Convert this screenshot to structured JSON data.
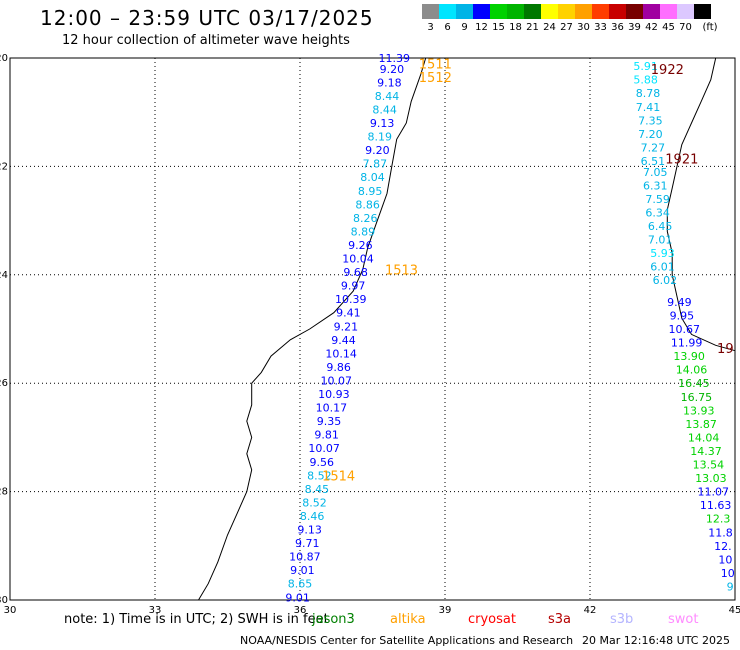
{
  "title": "12:00 – 23:59 UTC 03/17/2025",
  "subtitle": "12 hour collection of altimeter wave heights",
  "color_scale": {
    "unit_label": "(ft)",
    "bins": [
      {
        "label": "3",
        "color": "#8c8c8c"
      },
      {
        "label": "6",
        "color": "#00e5ff"
      },
      {
        "label": "9",
        "color": "#00b4e6"
      },
      {
        "label": "12",
        "color": "#0000ff"
      },
      {
        "label": "15",
        "color": "#00d200"
      },
      {
        "label": "18",
        "color": "#00b400"
      },
      {
        "label": "21",
        "color": "#007800"
      },
      {
        "label": "24",
        "color": "#ffff00"
      },
      {
        "label": "27",
        "color": "#ffd200"
      },
      {
        "label": "30",
        "color": "#ffa000"
      },
      {
        "label": "33",
        "color": "#ff3c00"
      },
      {
        "label": "36",
        "color": "#c80000"
      },
      {
        "label": "39",
        "color": "#780000"
      },
      {
        "label": "42",
        "color": "#a000a0"
      },
      {
        "label": "45",
        "color": "#ff6eff"
      },
      {
        "label": "70",
        "color": "#dcc8ff"
      },
      {
        "label": "",
        "color": "#000000"
      }
    ]
  },
  "footer": {
    "note": "note: 1) Time is in UTC; 2) SWH is in feet",
    "satellites": [
      {
        "name": "jason3",
        "color": "#008000"
      },
      {
        "name": "altika",
        "color": "#ffa000"
      },
      {
        "name": "cryosat",
        "color": "#ff0000"
      },
      {
        "name": "s3a",
        "color": "#b40000"
      },
      {
        "name": "s3b",
        "color": "#b4b4ff"
      },
      {
        "name": "swot",
        "color": "#ff8cff"
      }
    ],
    "credit": "NOAA/NESDIS Center for Satellite Applications and Research",
    "timestamp": "20 Mar 12:16:48 UTC 2025"
  },
  "chart_data": {
    "type": "scatter",
    "title": "12:00 – 23:59 UTC 03/17/2025",
    "subtitle": "12 hour collection of altimeter wave heights",
    "xlim": [
      30,
      45
    ],
    "ylim": [
      -30,
      -20
    ],
    "x_ticks": [
      "30",
      "33",
      "36",
      "39",
      "42",
      "45"
    ],
    "y_ticks": [
      "-20",
      "-22",
      "-24",
      "-26",
      "-28",
      "-30"
    ],
    "grid": true,
    "tracks": [
      {
        "id": "1511",
        "lon": 38.8,
        "lat": -20.1,
        "color": "#ffa000"
      },
      {
        "id": "1512",
        "lon": 38.8,
        "lat": -20.35,
        "color": "#ffa000"
      },
      {
        "id": "1513",
        "lon": 38.1,
        "lat": -23.9,
        "color": "#ffa000"
      },
      {
        "id": "1514",
        "lon": 36.8,
        "lat": -27.7,
        "color": "#ffa000"
      },
      {
        "id": "1922",
        "lon": 43.6,
        "lat": -20.2,
        "color": "#780000"
      },
      {
        "id": "1921",
        "lon": 43.9,
        "lat": -21.85,
        "color": "#780000"
      },
      {
        "id": "19",
        "lon": 44.8,
        "lat": -25.35,
        "color": "#780000"
      }
    ],
    "observations": [
      {
        "lat": -20.0,
        "lon": 37.95,
        "swh": "11.39"
      },
      {
        "lat": -20.2,
        "lon": 37.9,
        "swh": "9.20"
      },
      {
        "lat": -20.45,
        "lon": 37.85,
        "swh": "9.18"
      },
      {
        "lat": -20.7,
        "lon": 37.8,
        "swh": "8.44"
      },
      {
        "lat": -20.95,
        "lon": 37.75,
        "swh": "8.44"
      },
      {
        "lat": -21.2,
        "lon": 37.7,
        "swh": "9.13"
      },
      {
        "lat": -21.45,
        "lon": 37.65,
        "swh": "8.19"
      },
      {
        "lat": -21.7,
        "lon": 37.6,
        "swh": "9.20"
      },
      {
        "lat": -21.95,
        "lon": 37.55,
        "swh": "7.87"
      },
      {
        "lat": -22.2,
        "lon": 37.5,
        "swh": "8.04"
      },
      {
        "lat": -22.45,
        "lon": 37.45,
        "swh": "8.95"
      },
      {
        "lat": -22.7,
        "lon": 37.4,
        "swh": "8.86"
      },
      {
        "lat": -22.95,
        "lon": 37.35,
        "swh": "8.26"
      },
      {
        "lat": -23.2,
        "lon": 37.3,
        "swh": "8.89"
      },
      {
        "lat": -23.45,
        "lon": 37.25,
        "swh": "9.26"
      },
      {
        "lat": -23.7,
        "lon": 37.2,
        "swh": "10.04"
      },
      {
        "lat": -23.95,
        "lon": 37.15,
        "swh": "9.68"
      },
      {
        "lat": -24.2,
        "lon": 37.1,
        "swh": "9.97"
      },
      {
        "lat": -24.45,
        "lon": 37.05,
        "swh": "10.39"
      },
      {
        "lat": -24.7,
        "lon": 37.0,
        "swh": "9.41"
      },
      {
        "lat": -24.95,
        "lon": 36.95,
        "swh": "9.21"
      },
      {
        "lat": -25.2,
        "lon": 36.9,
        "swh": "9.44"
      },
      {
        "lat": -25.45,
        "lon": 36.85,
        "swh": "10.14"
      },
      {
        "lat": -25.7,
        "lon": 36.8,
        "swh": "9.86"
      },
      {
        "lat": -25.95,
        "lon": 36.75,
        "swh": "10.07"
      },
      {
        "lat": -26.2,
        "lon": 36.7,
        "swh": "10.93"
      },
      {
        "lat": -26.45,
        "lon": 36.65,
        "swh": "10.17"
      },
      {
        "lat": -26.7,
        "lon": 36.6,
        "swh": "9.35"
      },
      {
        "lat": -26.95,
        "lon": 36.55,
        "swh": "9.81"
      },
      {
        "lat": -27.2,
        "lon": 36.5,
        "swh": "10.07"
      },
      {
        "lat": -27.45,
        "lon": 36.45,
        "swh": "9.56"
      },
      {
        "lat": -27.7,
        "lon": 36.4,
        "swh": "8.52"
      },
      {
        "lat": -27.95,
        "lon": 36.35,
        "swh": "8.45"
      },
      {
        "lat": -28.2,
        "lon": 36.3,
        "swh": "8.52"
      },
      {
        "lat": -28.45,
        "lon": 36.25,
        "swh": "8.46"
      },
      {
        "lat": -28.7,
        "lon": 36.2,
        "swh": "9.13"
      },
      {
        "lat": -28.95,
        "lon": 36.15,
        "swh": "9.71"
      },
      {
        "lat": -29.2,
        "lon": 36.1,
        "swh": "10.87"
      },
      {
        "lat": -29.45,
        "lon": 36.05,
        "swh": "9.01"
      },
      {
        "lat": -29.7,
        "lon": 36.0,
        "swh": "8.65"
      },
      {
        "lat": -29.95,
        "lon": 35.95,
        "swh": "9.01"
      },
      {
        "lat": -20.15,
        "lon": 43.15,
        "swh": "5.91"
      },
      {
        "lat": -20.4,
        "lon": 43.15,
        "swh": "5.88"
      },
      {
        "lat": -20.65,
        "lon": 43.2,
        "swh": "8.78"
      },
      {
        "lat": -20.9,
        "lon": 43.2,
        "swh": "7.41"
      },
      {
        "lat": -21.15,
        "lon": 43.25,
        "swh": "7.35"
      },
      {
        "lat": -21.4,
        "lon": 43.25,
        "swh": "7.20"
      },
      {
        "lat": -21.65,
        "lon": 43.3,
        "swh": "7.27"
      },
      {
        "lat": -21.9,
        "lon": 43.3,
        "swh": "6.51"
      },
      {
        "lat": -22.1,
        "lon": 43.35,
        "swh": "7.05"
      },
      {
        "lat": -22.35,
        "lon": 43.35,
        "swh": "6.31"
      },
      {
        "lat": -22.6,
        "lon": 43.4,
        "swh": "7.59"
      },
      {
        "lat": -22.85,
        "lon": 43.4,
        "swh": "6.34"
      },
      {
        "lat": -23.1,
        "lon": 43.45,
        "swh": "6.45"
      },
      {
        "lat": -23.35,
        "lon": 43.45,
        "swh": "7.01"
      },
      {
        "lat": -23.6,
        "lon": 43.5,
        "swh": "5.93"
      },
      {
        "lat": -23.85,
        "lon": 43.5,
        "swh": "6.01"
      },
      {
        "lat": -24.1,
        "lon": 43.55,
        "swh": "6.02"
      },
      {
        "lat": -24.5,
        "lon": 43.85,
        "swh": "9.49"
      },
      {
        "lat": -24.75,
        "lon": 43.9,
        "swh": "9.95"
      },
      {
        "lat": -25.0,
        "lon": 43.95,
        "swh": "10.67"
      },
      {
        "lat": -25.25,
        "lon": 44.0,
        "swh": "11.99"
      },
      {
        "lat": -25.5,
        "lon": 44.05,
        "swh": "13.90"
      },
      {
        "lat": -25.75,
        "lon": 44.1,
        "swh": "14.06"
      },
      {
        "lat": -26.0,
        "lon": 44.15,
        "swh": "16.45"
      },
      {
        "lat": -26.25,
        "lon": 44.2,
        "swh": "16.75"
      },
      {
        "lat": -26.5,
        "lon": 44.25,
        "swh": "13.93"
      },
      {
        "lat": -26.75,
        "lon": 44.3,
        "swh": "13.87"
      },
      {
        "lat": -27.0,
        "lon": 44.35,
        "swh": "14.04"
      },
      {
        "lat": -27.25,
        "lon": 44.4,
        "swh": "14.37"
      },
      {
        "lat": -27.5,
        "lon": 44.45,
        "swh": "13.54"
      },
      {
        "lat": -27.75,
        "lon": 44.5,
        "swh": "13.03"
      },
      {
        "lat": -28.0,
        "lon": 44.55,
        "swh": "11.07"
      },
      {
        "lat": -28.25,
        "lon": 44.6,
        "swh": "11.63"
      },
      {
        "lat": -28.5,
        "lon": 44.65,
        "swh": "12.3"
      },
      {
        "lat": -28.75,
        "lon": 44.7,
        "swh": "11.8"
      },
      {
        "lat": -29.0,
        "lon": 44.75,
        "swh": "12."
      },
      {
        "lat": -29.25,
        "lon": 44.8,
        "swh": "10"
      },
      {
        "lat": -29.5,
        "lon": 44.85,
        "swh": "10"
      },
      {
        "lat": -29.75,
        "lon": 44.9,
        "swh": "9"
      }
    ],
    "coastlines": {
      "mozambique": [
        [
          38.6,
          -20.0
        ],
        [
          38.5,
          -20.3
        ],
        [
          38.3,
          -20.8
        ],
        [
          38.2,
          -21.2
        ],
        [
          38.0,
          -21.5
        ],
        [
          37.9,
          -22.0
        ],
        [
          37.8,
          -22.5
        ],
        [
          37.6,
          -23.0
        ],
        [
          37.4,
          -23.5
        ],
        [
          37.3,
          -23.9
        ],
        [
          37.1,
          -24.3
        ],
        [
          36.7,
          -24.7
        ],
        [
          36.2,
          -25.0
        ],
        [
          35.8,
          -25.2
        ],
        [
          35.4,
          -25.5
        ],
        [
          35.2,
          -25.8
        ],
        [
          35.0,
          -26.0
        ],
        [
          35.0,
          -26.4
        ],
        [
          34.9,
          -26.7
        ],
        [
          35.0,
          -27.0
        ],
        [
          34.9,
          -27.3
        ],
        [
          35.0,
          -27.6
        ],
        [
          34.9,
          -28.0
        ],
        [
          34.7,
          -28.4
        ],
        [
          34.5,
          -28.8
        ],
        [
          34.3,
          -29.3
        ],
        [
          34.1,
          -29.7
        ],
        [
          33.9,
          -30.0
        ]
      ],
      "madagascar": [
        [
          44.6,
          -20.0
        ],
        [
          44.5,
          -20.4
        ],
        [
          44.3,
          -20.8
        ],
        [
          44.1,
          -21.2
        ],
        [
          43.9,
          -21.6
        ],
        [
          43.8,
          -22.0
        ],
        [
          43.7,
          -22.4
        ],
        [
          43.6,
          -22.8
        ],
        [
          43.6,
          -23.2
        ],
        [
          43.7,
          -23.6
        ],
        [
          43.7,
          -24.0
        ],
        [
          43.8,
          -24.4
        ],
        [
          43.9,
          -24.8
        ],
        [
          44.1,
          -25.1
        ],
        [
          44.6,
          -25.3
        ],
        [
          45.0,
          -25.4
        ]
      ]
    }
  }
}
